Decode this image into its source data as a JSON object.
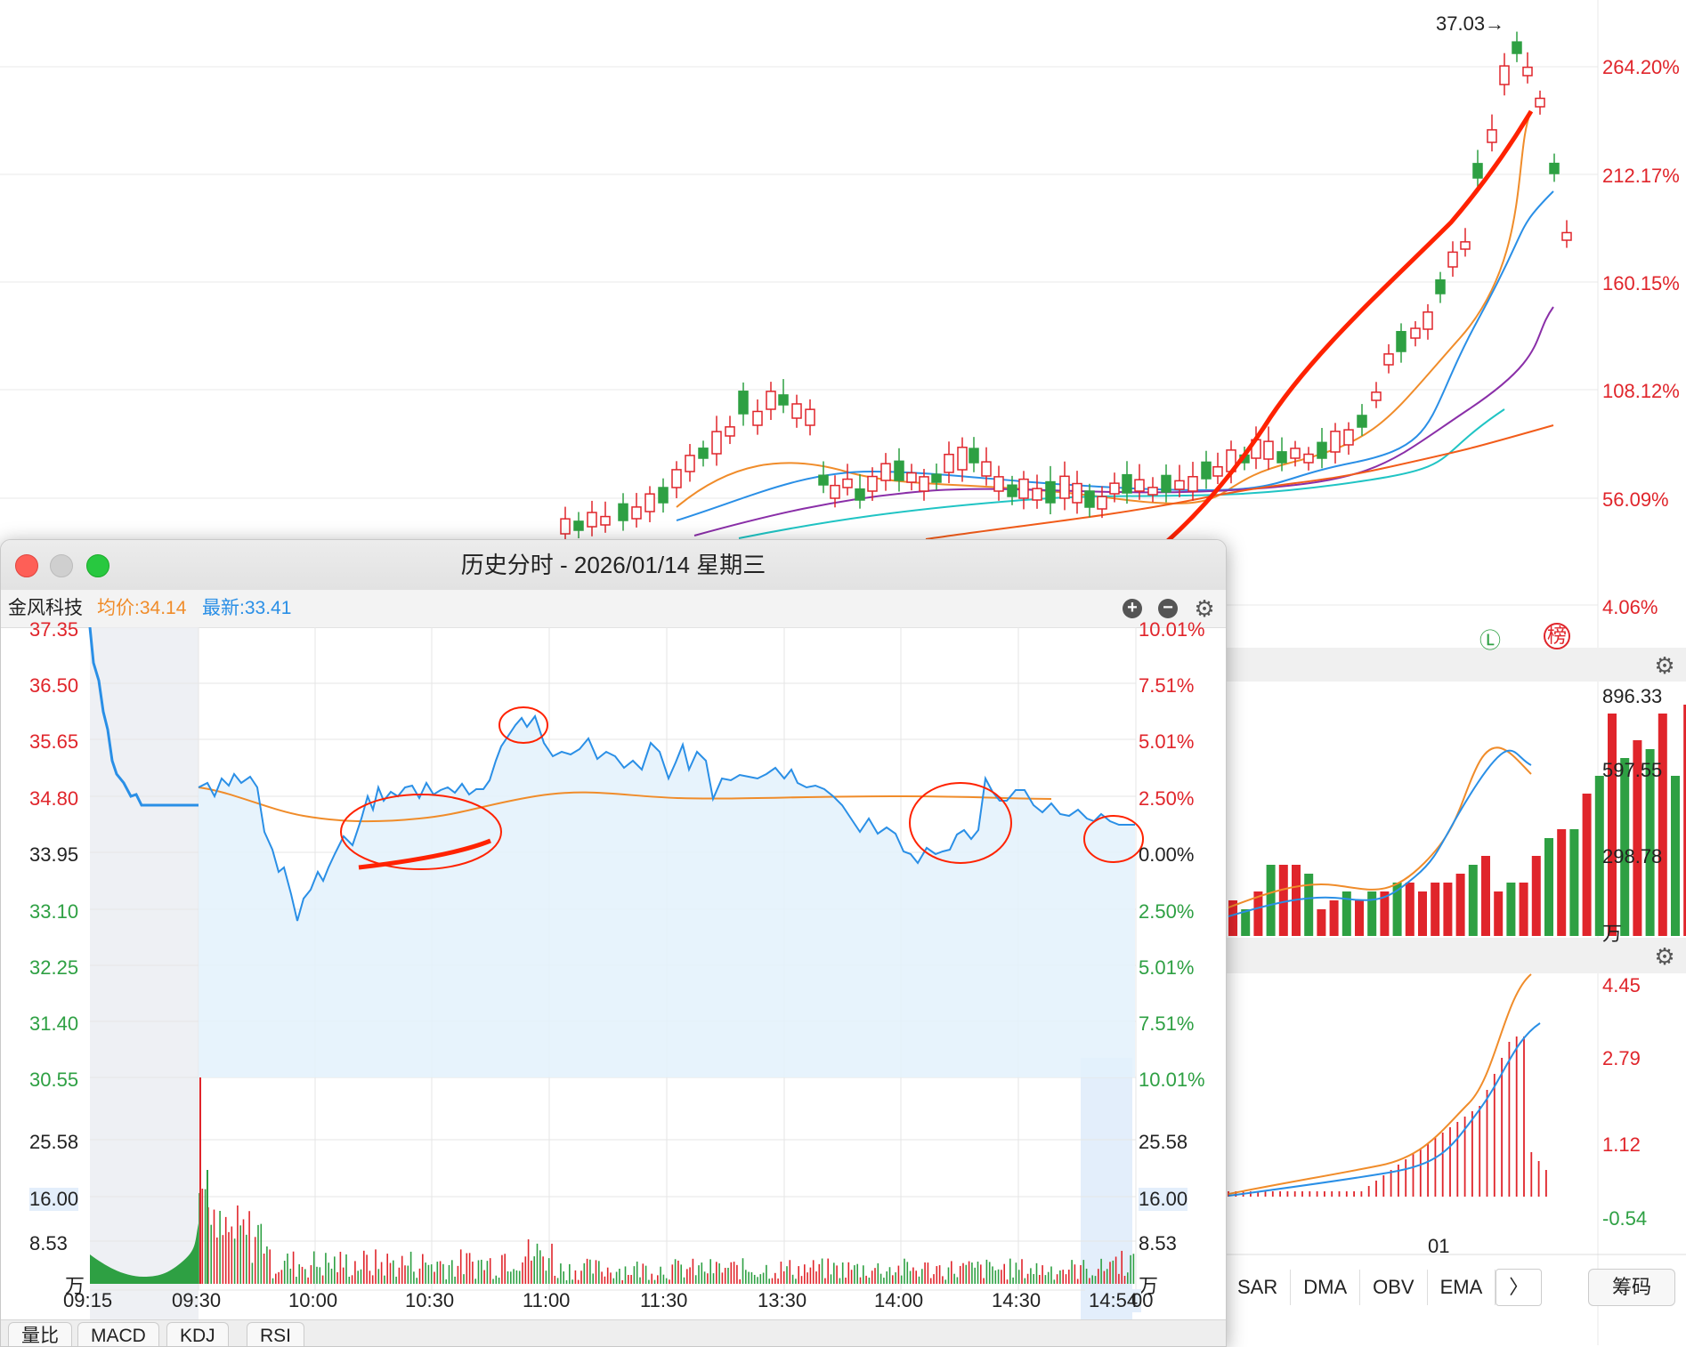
{
  "background_kline": {
    "peak_label": "37.03→",
    "right_axis": [
      "264.20%",
      "212.17%",
      "160.15%",
      "108.12%",
      "56.09%",
      "4.06%"
    ],
    "badges": [
      "Ⓛ",
      "榜"
    ],
    "volume_axis": [
      "896.33",
      "597.55",
      "298.78",
      "万"
    ],
    "macd_axis": [
      "4.45",
      "2.79",
      "1.12",
      "-0.54"
    ],
    "date_label": "01",
    "bottom_tabs": [
      "SAR",
      "DMA",
      "OBV",
      "EMA",
      "〉"
    ],
    "chip_button": "筹码"
  },
  "window": {
    "title": "历史分时 - 2026/01/14 星期三",
    "stock_name": "金风科技",
    "avg_price_label": "均价:34.14",
    "last_price_label": "最新:33.41",
    "zoom_in": "+",
    "zoom_out": "−",
    "left_price_axis": [
      "37.35",
      "36.50",
      "35.65",
      "34.80",
      "33.95",
      "33.10",
      "32.25",
      "31.40",
      "30.55"
    ],
    "right_pct_axis": [
      "10.01%",
      "7.51%",
      "5.01%",
      "2.50%",
      "0.00%",
      "2.50%",
      "5.01%",
      "7.51%",
      "10.01%"
    ],
    "volume_axis_left": [
      "25.58",
      "16.00",
      "8.53",
      "万"
    ],
    "volume_axis_right": [
      "25.58",
      "16.00",
      "8.53",
      "万"
    ],
    "time_axis": [
      "09:15",
      "09:30",
      "10:00",
      "10:30",
      "11:00",
      "11:30",
      "13:30",
      "14:00",
      "14:30",
      "14:54",
      "00"
    ],
    "tabs": [
      "量比",
      "MACD",
      "KDJ",
      "RSI"
    ]
  },
  "colors": {
    "up": "#e0252b",
    "down": "#2ea043",
    "price_line": "#2a8fe6",
    "avg_line": "#f08c2a",
    "annotation": "#ff2200"
  }
}
